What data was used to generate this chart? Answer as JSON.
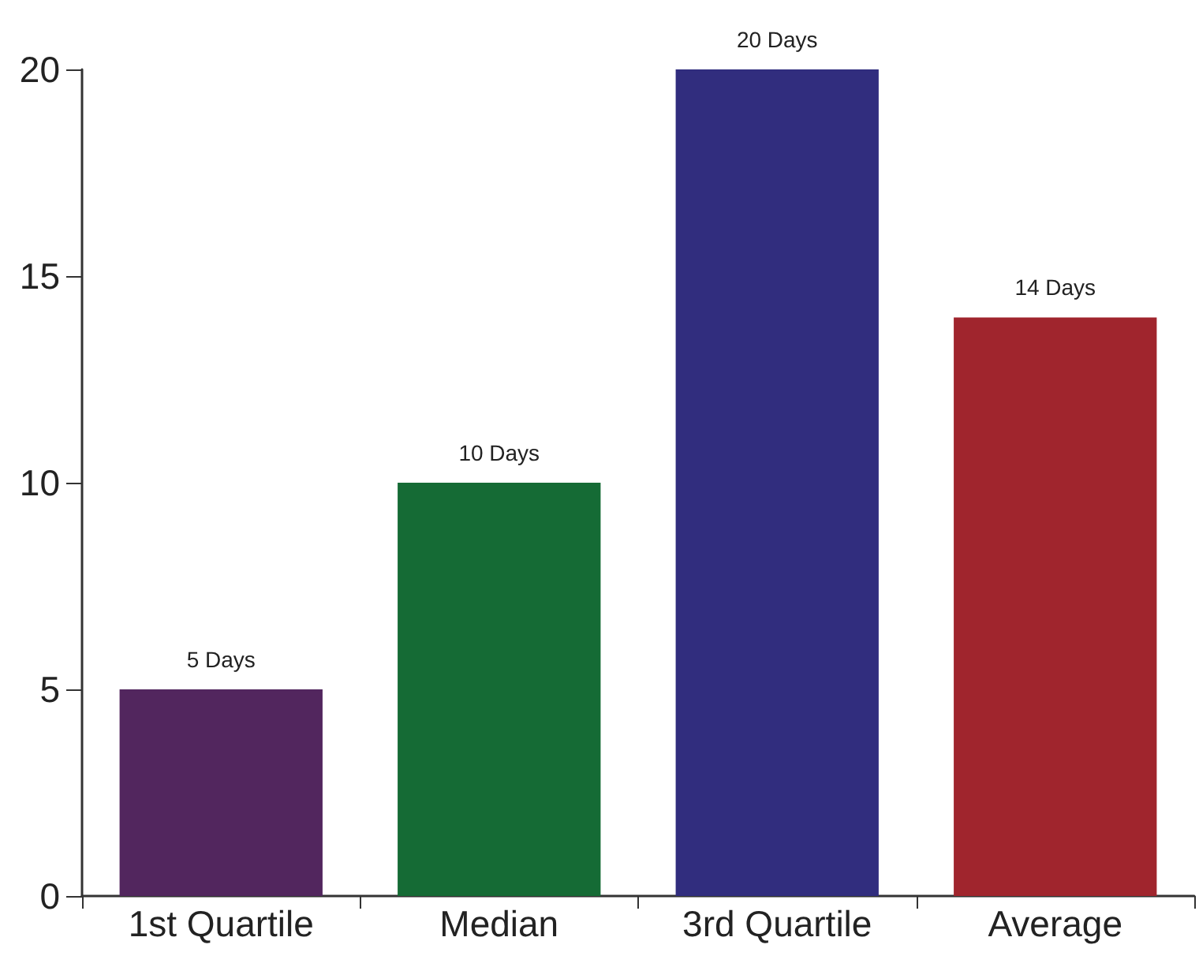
{
  "chart_data": {
    "type": "bar",
    "categories": [
      "1st Quartile",
      "Median",
      "3rd Quartile",
      "Average"
    ],
    "values": [
      5,
      10,
      20,
      14
    ],
    "colors": [
      "#52265e",
      "#156b35",
      "#312d7e",
      "#a0252d"
    ],
    "value_labels": [
      "5 Days",
      "10 Days",
      "20 Days",
      "14 Days"
    ],
    "ylim": [
      0,
      20
    ],
    "yticks": [
      0,
      5,
      10,
      15,
      20
    ],
    "grid": false
  }
}
